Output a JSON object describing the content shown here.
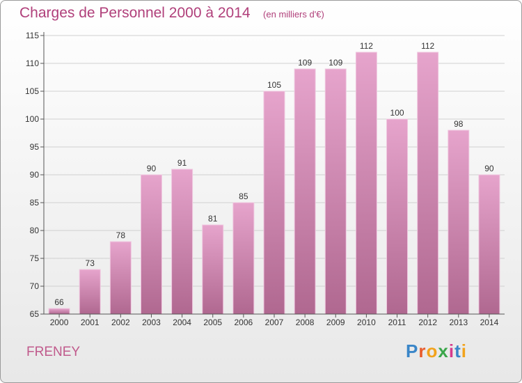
{
  "header": {
    "title": "Charges de Personnel 2000 à 2014",
    "unit": "(en milliers d'€)"
  },
  "footer": {
    "commune": "FRENEY",
    "logo_text": "Proxiti",
    "logo_colors": [
      "#3a86c8",
      "#e85c2c",
      "#f2a31c",
      "#3aa64a",
      "#d63b8c",
      "#3a86c8",
      "#f2a31c"
    ]
  },
  "colors": {
    "bar_top": "#e6a4cc",
    "bar_bottom": "#b06890",
    "grid": "#d0d0d0",
    "axis": "#555555"
  },
  "chart_data": {
    "type": "bar",
    "categories": [
      "2000",
      "2001",
      "2002",
      "2003",
      "2004",
      "2005",
      "2006",
      "2007",
      "2008",
      "2009",
      "2010",
      "2011",
      "2012",
      "2013",
      "2014"
    ],
    "values": [
      66,
      73,
      78,
      90,
      91,
      81,
      85,
      105,
      109,
      109,
      112,
      100,
      112,
      98,
      90
    ],
    "data_labels": [
      "66",
      "73",
      "78",
      "90",
      "91",
      "81",
      "85",
      "105",
      "109",
      "109",
      "112",
      "100",
      "112",
      "98",
      "90"
    ],
    "y_ticks": [
      65,
      70,
      75,
      80,
      85,
      90,
      95,
      100,
      105,
      110,
      115
    ],
    "y_tick_labels": [
      "65",
      "70",
      "75",
      "80",
      "85",
      "90",
      "95",
      "100",
      "105",
      "110",
      "115"
    ],
    "ylim": [
      65,
      115
    ],
    "grid": true,
    "legend": "none"
  }
}
